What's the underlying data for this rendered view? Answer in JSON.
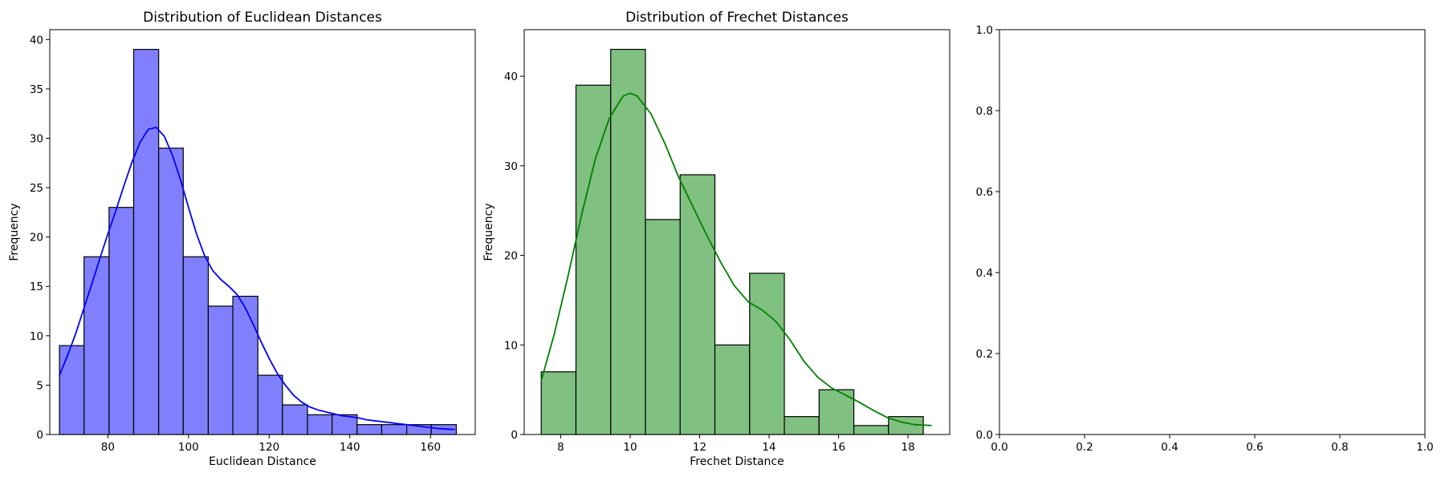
{
  "chart_data": [
    {
      "type": "bar",
      "title": "Distribution of Euclidean Distances",
      "xlabel": "Euclidean Distance",
      "ylabel": "Frequency",
      "xlim": [
        65.6,
        171.1
      ],
      "ylim": [
        0,
        41
      ],
      "xticks": [
        80,
        100,
        120,
        140,
        160
      ],
      "yticks": [
        0,
        5,
        10,
        15,
        20,
        25,
        30,
        35,
        40
      ],
      "bins": [
        68.0,
        74.1,
        80.3,
        86.4,
        92.6,
        98.7,
        104.9,
        111.0,
        117.2,
        123.3,
        129.5,
        135.6,
        141.8,
        147.9,
        154.1,
        160.2,
        166.4
      ],
      "counts": [
        9,
        18,
        23,
        39,
        29,
        18,
        13,
        14,
        6,
        3,
        2,
        2,
        1,
        1,
        1,
        1
      ],
      "bar_color": "#8080ff",
      "kde_color": "#0000ff",
      "kde": {
        "x": [
          68,
          70,
          72,
          74,
          76,
          78,
          80,
          82,
          84,
          86,
          88,
          90,
          92,
          94,
          96,
          98,
          100,
          102,
          104,
          106,
          108,
          110,
          112,
          114,
          116,
          118,
          120,
          122,
          124,
          126,
          128,
          130,
          132,
          134,
          136,
          138,
          140,
          142,
          144,
          146,
          148,
          150,
          152,
          154,
          156,
          158,
          160,
          162,
          164,
          166
        ],
        "y": [
          6.0,
          8.0,
          10.2,
          12.7,
          15.2,
          17.8,
          20.3,
          22.7,
          25.2,
          27.6,
          29.6,
          30.9,
          31.1,
          30.2,
          28.3,
          25.8,
          23.0,
          20.3,
          18.1,
          16.6,
          15.7,
          15.0,
          14.2,
          12.9,
          11.2,
          9.4,
          7.7,
          6.2,
          5.0,
          4.0,
          3.3,
          2.8,
          2.5,
          2.3,
          2.1,
          1.9,
          1.8,
          1.7,
          1.5,
          1.4,
          1.3,
          1.2,
          1.1,
          1.0,
          0.9,
          0.8,
          0.7,
          0.6,
          0.55,
          0.5
        ]
      }
    },
    {
      "type": "bar",
      "title": "Distribution of Frechet Distances",
      "xlabel": "Frechet Distance",
      "ylabel": "Frequency",
      "xlim": [
        6.95,
        19.2
      ],
      "ylim": [
        0,
        45.2
      ],
      "xticks": [
        8,
        10,
        12,
        14,
        16,
        18
      ],
      "yticks": [
        0,
        10,
        20,
        30,
        40
      ],
      "bins": [
        7.44,
        8.44,
        9.44,
        10.44,
        11.44,
        12.44,
        13.44,
        14.44,
        15.44,
        16.44,
        17.44,
        18.44
      ],
      "counts": [
        7,
        39,
        43,
        24,
        29,
        10,
        18,
        2,
        5,
        1,
        2
      ],
      "bar_color": "#80c080",
      "kde_color": "#008000",
      "kde": {
        "x": [
          7.44,
          7.8,
          8.2,
          8.6,
          9.0,
          9.4,
          9.8,
          10.0,
          10.2,
          10.6,
          11.0,
          11.4,
          11.8,
          12.2,
          12.6,
          13.0,
          13.4,
          13.8,
          14.2,
          14.6,
          15.0,
          15.4,
          15.8,
          16.2,
          16.6,
          17.0,
          17.4,
          17.8,
          18.2,
          18.68
        ],
        "y": [
          6.0,
          11.0,
          17.5,
          24.5,
          30.8,
          35.3,
          37.8,
          38.1,
          37.8,
          35.8,
          32.5,
          28.7,
          25.5,
          22.3,
          19.3,
          16.6,
          14.8,
          13.9,
          12.6,
          10.6,
          8.2,
          6.4,
          5.2,
          4.4,
          3.6,
          2.7,
          1.9,
          1.4,
          1.1,
          1.0
        ]
      }
    },
    {
      "type": "scatter",
      "title": "",
      "xlabel": "",
      "ylabel": "",
      "xlim": [
        0.0,
        1.0
      ],
      "ylim": [
        0.0,
        1.0
      ],
      "xticks": [
        0.0,
        0.2,
        0.4,
        0.6,
        0.8,
        1.0
      ],
      "yticks": [
        0.0,
        0.2,
        0.4,
        0.6,
        0.8,
        1.0
      ],
      "xticklabels": [
        "0.0",
        "0.2",
        "0.4",
        "0.6",
        "0.8",
        "1.0"
      ],
      "yticklabels": [
        "0.0",
        "0.2",
        "0.4",
        "0.6",
        "0.8",
        "1.0"
      ]
    }
  ]
}
